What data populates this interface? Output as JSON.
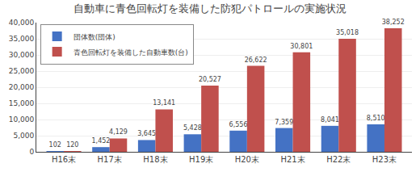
{
  "chart_data": {
    "type": "bar",
    "title": "自動車に青色回転灯を装備した防犯パトロールの実施状況",
    "categories": [
      "H16末",
      "H17末",
      "H18末",
      "H19末",
      "H20末",
      "H21末",
      "H22末",
      "H23末"
    ],
    "series": [
      {
        "name": "団体数(団体)",
        "color": "#4472C4",
        "values": [
          102,
          1452,
          3645,
          5428,
          6556,
          7359,
          8041,
          8510
        ],
        "value_labels": [
          "102",
          "1,452",
          "3,645",
          "5,428",
          "6,556",
          "7,359",
          "8,041",
          "8,510"
        ]
      },
      {
        "name": "青色回転灯を装備した自動車数(台)",
        "color": "#C0504D",
        "values": [
          120,
          4129,
          13141,
          20527,
          26622,
          30801,
          35018,
          38252
        ],
        "value_labels": [
          "120",
          "4,129",
          "13,141",
          "20,527",
          "26,622",
          "30,801",
          "35,018",
          "38,252"
        ]
      }
    ],
    "ylim": [
      0,
      40000
    ],
    "yticks": [
      0,
      {
        "value": 5000,
        "label": "5,000"
      },
      {
        "value": 10000,
        "label": "10,000"
      },
      {
        "value": 15000,
        "label": "15,000"
      },
      {
        "value": 20000,
        "label": "20,000"
      },
      {
        "value": 25000,
        "label": "25,000"
      },
      {
        "value": 30000,
        "label": "30,000"
      },
      {
        "value": 35000,
        "label": "35,000"
      },
      {
        "value": 40000,
        "label": "40,000"
      }
    ],
    "grid": true,
    "legend": "upper left",
    "data_labels": true
  }
}
